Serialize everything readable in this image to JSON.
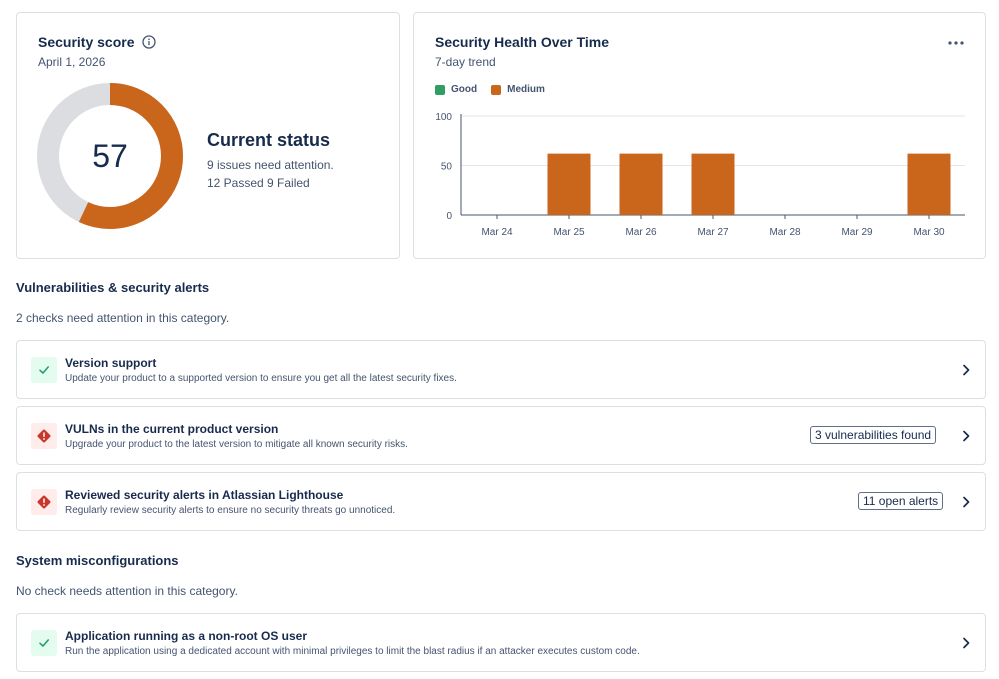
{
  "score_card": {
    "title": "Security score",
    "date": "April 1, 2026",
    "score": "57",
    "score_fraction": 0.57,
    "status_heading": "Current status",
    "issues_text": "9 issues need attention.",
    "passed_failed_text": "12 Passed 9 Failed",
    "colors": {
      "score": "#c9661c",
      "track": "#dcdde0"
    }
  },
  "chart_card": {
    "title": "Security Health Over Time",
    "subtitle": "7-day trend",
    "more_icon": "more-horizontal-icon"
  },
  "chart_data": {
    "type": "bar",
    "categories": [
      "Mar 24",
      "Mar 25",
      "Mar 26",
      "Mar 27",
      "Mar 28",
      "Mar 29",
      "Mar 30"
    ],
    "series": [
      {
        "name": "Good",
        "color": "#2f9e63",
        "values": [
          0,
          0,
          0,
          0,
          0,
          0,
          0
        ]
      },
      {
        "name": "Medium",
        "color": "#c9661c",
        "values": [
          0,
          62,
          62,
          62,
          0,
          0,
          62
        ]
      }
    ],
    "ylim": [
      0,
      100
    ],
    "yticks": [
      "100",
      "50",
      "0"
    ],
    "grid": true,
    "legend": "top-left"
  },
  "sections": [
    {
      "title": "Vulnerabilities & security alerts",
      "subtitle": "2 checks need attention in this category.",
      "checks": [
        {
          "status": "pass",
          "icon": "check-icon",
          "title": "Version support",
          "description": "Update your product to a supported version to ensure you get all the latest security fixes.",
          "badge": ""
        },
        {
          "status": "fail",
          "icon": "error-diamond-icon",
          "title": "VULNs in the current product version",
          "description": "Upgrade your product to the latest version to mitigate all known security risks.",
          "badge": "3 vulnerabilities found"
        },
        {
          "status": "fail",
          "icon": "error-diamond-icon",
          "title": "Reviewed security alerts in Atlassian Lighthouse",
          "description": "Regularly review security alerts to ensure no security threats go unnoticed.",
          "badge": "11 open alerts"
        }
      ]
    },
    {
      "title": "System misconfigurations",
      "subtitle": "No check needs attention in this category.",
      "checks": [
        {
          "status": "pass",
          "icon": "check-icon",
          "title": "Application running as a non-root OS user",
          "description": "Run the application using a dedicated account with minimal privileges to limit the blast radius if an attacker executes custom code.",
          "badge": ""
        }
      ]
    }
  ],
  "colors": {
    "pass_icon": "#22a06b",
    "fail_icon": "#c9372c",
    "accent": "#c9661c"
  }
}
